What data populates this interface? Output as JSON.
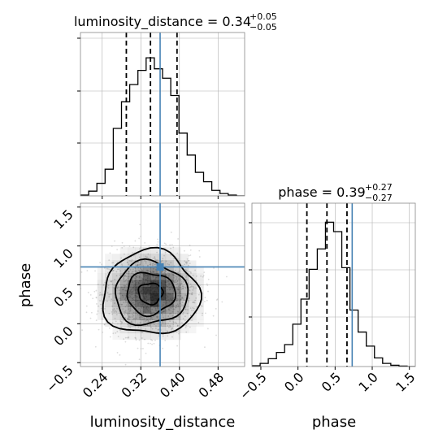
{
  "chart_data": [
    {
      "type": "histogram",
      "panel": "luminosity_distance-marginal",
      "title_param": "luminosity_distance",
      "title_value": "0.34",
      "title_plus": "+0.05",
      "title_minus": "−0.05",
      "xlim": [
        0.195,
        0.535
      ],
      "quantiles": [
        0.29,
        0.34,
        0.395
      ],
      "truth": 0.36,
      "bin_edges": [
        0.195,
        0.212,
        0.229,
        0.246,
        0.263,
        0.28,
        0.297,
        0.314,
        0.331,
        0.348,
        0.365,
        0.382,
        0.399,
        0.416,
        0.433,
        0.45,
        0.467,
        0.484,
        0.501,
        0.518,
        0.535
      ],
      "counts": [
        0.005,
        0.03,
        0.08,
        0.17,
        0.43,
        0.6,
        0.71,
        0.8,
        0.88,
        0.81,
        0.75,
        0.64,
        0.4,
        0.26,
        0.15,
        0.09,
        0.035,
        0.015,
        0.005,
        0
      ],
      "ylim": [
        0,
        1
      ]
    },
    {
      "type": "histogram",
      "panel": "phase-marginal",
      "title_param": "phase",
      "title_value": "0.39",
      "title_plus": "+0.27",
      "title_minus": "−0.27",
      "xlim": [
        -0.62,
        1.58
      ],
      "xticks": [
        -0.5,
        0.0,
        0.5,
        1.0,
        1.5
      ],
      "xtick_labels": [
        "−0.5",
        "0.0",
        "0.5",
        "1.0",
        "1.5"
      ],
      "xlabel": "phase",
      "quantiles": [
        0.12,
        0.39,
        0.66
      ],
      "truth": 0.73,
      "bin_edges": [
        -0.62,
        -0.51,
        -0.4,
        -0.29,
        -0.18,
        -0.07,
        0.04,
        0.15,
        0.26,
        0.37,
        0.48,
        0.59,
        0.7,
        0.81,
        0.92,
        1.03,
        1.14,
        1.25,
        1.36,
        1.47,
        1.58
      ],
      "counts": [
        0.005,
        0.02,
        0.05,
        0.09,
        0.14,
        0.27,
        0.43,
        0.62,
        0.75,
        0.92,
        0.86,
        0.63,
        0.36,
        0.22,
        0.13,
        0.055,
        0.02,
        0.008,
        0.003,
        0
      ],
      "ylim": [
        0,
        1
      ]
    },
    {
      "type": "scatter",
      "panel": "joint",
      "xlim": [
        0.195,
        0.535
      ],
      "ylim": [
        -0.55,
        1.55
      ],
      "xticks": [
        0.24,
        0.32,
        0.4,
        0.48
      ],
      "xtick_labels": [
        "0.24",
        "0.32",
        "0.40",
        "0.48"
      ],
      "yticks": [
        -0.5,
        0.0,
        0.5,
        1.0,
        1.5
      ],
      "ytick_labels": [
        "−0.5",
        "0.0",
        "0.5",
        "1.0",
        "1.5"
      ],
      "xlabel": "luminosity_distance",
      "ylabel": "phase",
      "mean": [
        0.34,
        0.39
      ],
      "std": [
        0.05,
        0.27
      ],
      "truth": [
        0.36,
        0.73
      ],
      "contour_levels_sigma": [
        0.5,
        1.0,
        1.5,
        2.0
      ]
    }
  ],
  "colors": {
    "truth": "#4682b4",
    "histogram": "#000000",
    "quantile": "#000000",
    "grid": "#b0b0b0",
    "scatter_points": "#9a9a9a",
    "density": "#000000"
  }
}
